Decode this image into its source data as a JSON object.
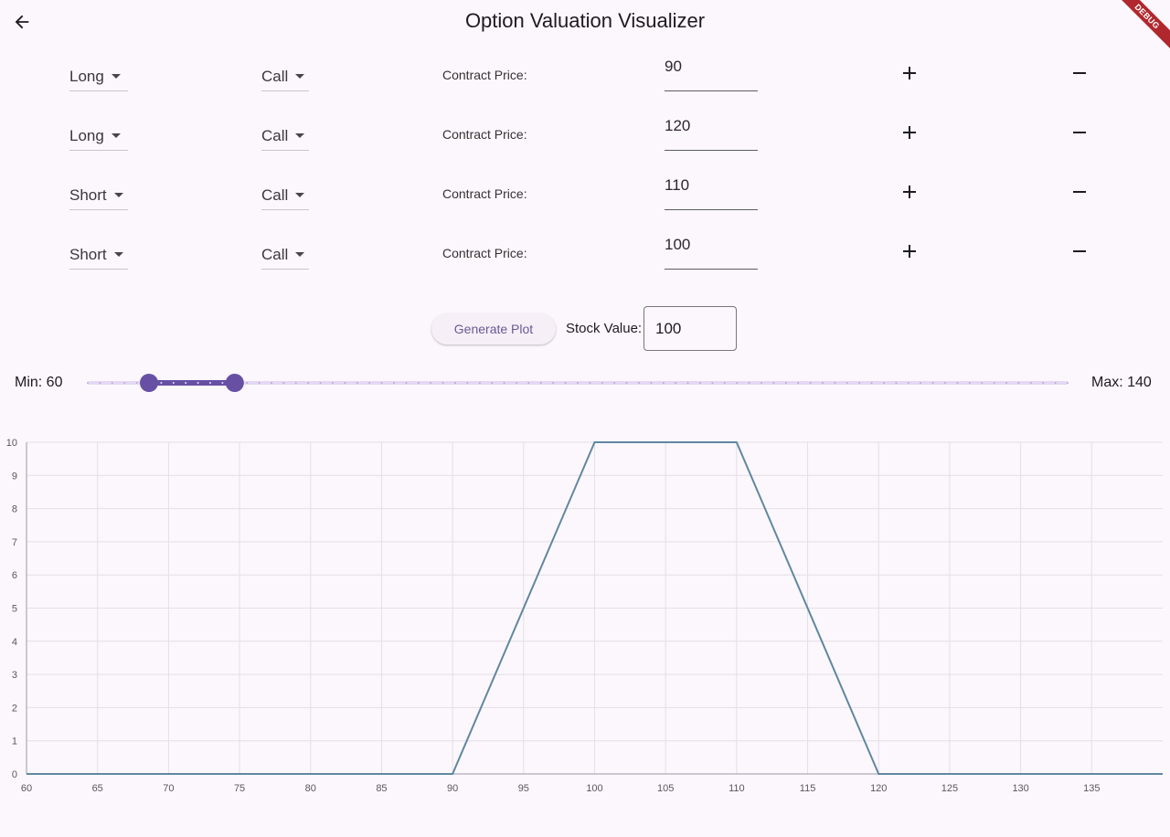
{
  "app": {
    "title": "Option Valuation Visualizer",
    "debug_banner": "DEBUG",
    "back_icon": "arrow-left-icon"
  },
  "legs": [
    {
      "position": "Long",
      "type": "Call",
      "label": "Contract Price:",
      "price": "90"
    },
    {
      "position": "Long",
      "type": "Call",
      "label": "Contract Price:",
      "price": "120"
    },
    {
      "position": "Short",
      "type": "Call",
      "label": "Contract Price:",
      "price": "110"
    },
    {
      "position": "Short",
      "type": "Call",
      "label": "Contract Price:",
      "price": "100"
    }
  ],
  "controls": {
    "generate_label": "Generate Plot",
    "stock_value_label": "Stock Value:",
    "stock_value": "100"
  },
  "range": {
    "min_label": "Min: 60",
    "max_label": "Max: 140",
    "min": 60,
    "max": 140,
    "low": 65,
    "high": 72,
    "divisions": 80
  },
  "colors": {
    "accent": "#6750a4",
    "accent_light": "#e4d8f3",
    "line": "#5f88a0",
    "grid": "#e3dfe6",
    "background": "#fcf7fc"
  },
  "chart_data": {
    "type": "line",
    "x": [
      60,
      90,
      100,
      110,
      120,
      140
    ],
    "series": [
      {
        "values": [
          0,
          0,
          10,
          10,
          0,
          0
        ]
      }
    ],
    "xlim": [
      60,
      140
    ],
    "ylim": [
      0,
      10
    ],
    "xticks": [
      "60",
      "65",
      "70",
      "75",
      "80",
      "85",
      "90",
      "95",
      "100",
      "105",
      "110",
      "115",
      "120",
      "125",
      "130",
      "135"
    ],
    "yticks": [
      "0",
      "1",
      "2",
      "3",
      "4",
      "5",
      "6",
      "7",
      "8",
      "9",
      "10"
    ],
    "grid": true,
    "title": "",
    "xlabel": "",
    "ylabel": ""
  }
}
